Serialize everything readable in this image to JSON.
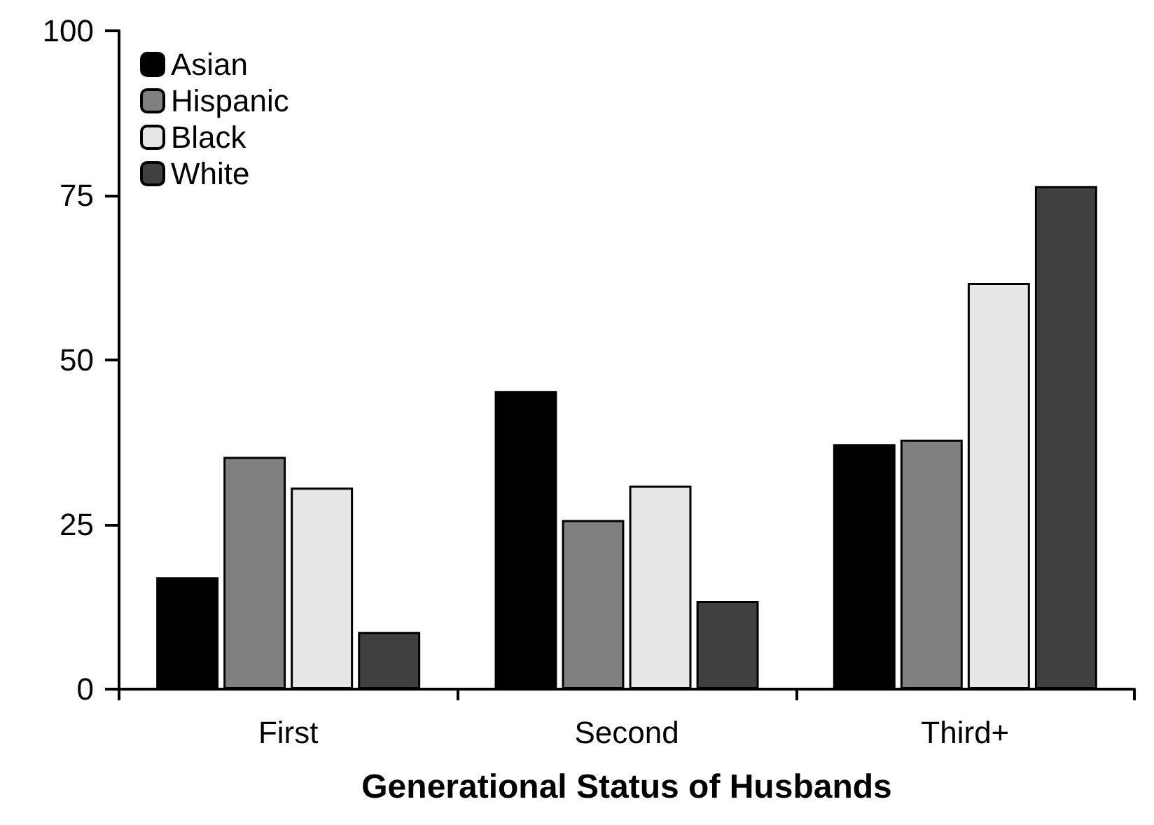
{
  "chart_data": {
    "type": "bar",
    "xlabel": "Generational Status of Husbands",
    "categories": [
      "First",
      "Second",
      "Third+"
    ],
    "series": [
      {
        "name": "Asian",
        "color": "#000000",
        "values": [
          17.0,
          45.3,
          37.2
        ]
      },
      {
        "name": "Hispanic",
        "color": "#808080",
        "values": [
          35.3,
          25.7,
          37.9
        ]
      },
      {
        "name": "Black",
        "color": "#e6e6e6",
        "values": [
          30.6,
          30.9,
          61.7
        ]
      },
      {
        "name": "White",
        "color": "#404040",
        "values": [
          8.7,
          13.4,
          76.4
        ]
      }
    ],
    "ylim": [
      0,
      100
    ],
    "yticks": [
      0,
      25,
      50,
      75,
      100
    ],
    "grid": false,
    "legend": "top left"
  }
}
